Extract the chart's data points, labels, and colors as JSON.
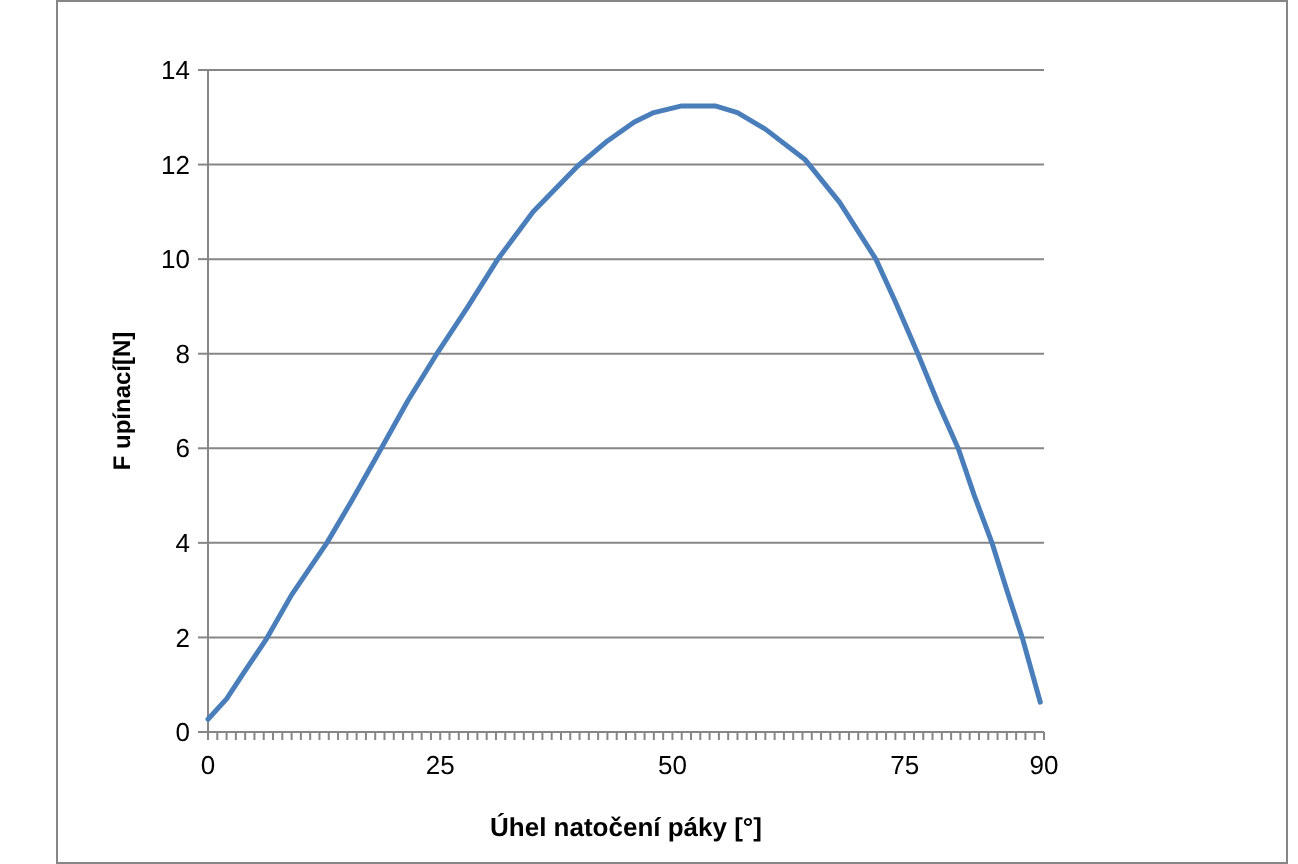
{
  "chart_data": {
    "type": "line",
    "xlabel": "Úhel natočení páky [°]",
    "ylabel": "F upínací[N]",
    "x": [
      0,
      2,
      4,
      6.3,
      9,
      12.8,
      15.5,
      18.6,
      21.5,
      24.7,
      28,
      31.2,
      35,
      39.8,
      43,
      45.9,
      48,
      51,
      54.6,
      57,
      60,
      64.3,
      68,
      71.9,
      74,
      76.5,
      78.5,
      80.8,
      82.5,
      84.4,
      86,
      87.7,
      89.6
    ],
    "series": [
      {
        "color": "#4a7ebb",
        "values": [
          0.27,
          0.7,
          1.3,
          1.97,
          2.9,
          4.0,
          4.9,
          5.98,
          7.0,
          8.02,
          9.0,
          10.0,
          11.0,
          11.97,
          12.5,
          12.9,
          13.1,
          13.24,
          13.24,
          13.1,
          12.75,
          12.1,
          11.2,
          10.0,
          9.1,
          7.96,
          7.0,
          5.98,
          5.0,
          4.0,
          3.0,
          1.97,
          0.63
        ]
      }
    ],
    "xlim": [
      0,
      90
    ],
    "xticks": [
      0,
      25,
      50,
      75,
      90
    ],
    "ylim": [
      0,
      14
    ],
    "yticks": [
      0,
      2,
      4,
      6,
      8,
      10,
      12,
      14
    ],
    "grid": "y",
    "marker": "none",
    "line_style": "solid"
  }
}
